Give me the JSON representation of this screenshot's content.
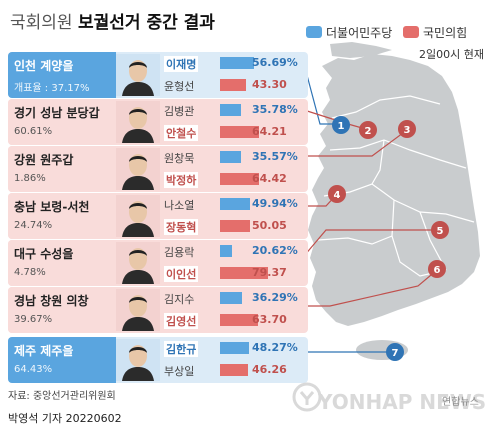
{
  "title": {
    "light": "국회의원",
    "bold": "보궐선거 중간 결과"
  },
  "legend": [
    {
      "label": "더불어민주당",
      "color": "#5aa5df"
    },
    {
      "label": "국민의힘",
      "color": "#e46e6b"
    }
  ],
  "as_of": "2일00시 현재",
  "races": [
    {
      "number": "1",
      "region": "인천 계양을",
      "turnout_label": "개표율 :",
      "turnout": "37.17%",
      "candidates": [
        {
          "name": "이재명",
          "pct": "56.69%",
          "value": 56.69,
          "party": "dem",
          "winner": true
        },
        {
          "name": "윤형선",
          "pct": "43.30",
          "value": 43.3,
          "party": "ppp",
          "winner": false
        }
      ]
    },
    {
      "number": "2",
      "region": "경기 성남 분당갑",
      "turnout": "60.61%",
      "candidates": [
        {
          "name": "김병관",
          "pct": "35.78%",
          "value": 35.78,
          "party": "dem",
          "winner": false
        },
        {
          "name": "안철수",
          "pct": "64.21",
          "value": 64.21,
          "party": "ppp",
          "winner": true
        }
      ]
    },
    {
      "number": "3",
      "region": "강원 원주갑",
      "turnout": "1.86%",
      "candidates": [
        {
          "name": "원창묵",
          "pct": "35.57%",
          "value": 35.57,
          "party": "dem",
          "winner": false
        },
        {
          "name": "박정하",
          "pct": "64.42",
          "value": 64.42,
          "party": "ppp",
          "winner": true
        }
      ]
    },
    {
      "number": "4",
      "region": "충남 보령-서천",
      "turnout": "24.74%",
      "candidates": [
        {
          "name": "나소열",
          "pct": "49.94%",
          "value": 49.94,
          "party": "dem",
          "winner": false
        },
        {
          "name": "장동혁",
          "pct": "50.05",
          "value": 50.05,
          "party": "ppp",
          "winner": true
        }
      ]
    },
    {
      "number": "5",
      "region": "대구 수성을",
      "turnout": "4.78%",
      "candidates": [
        {
          "name": "김용락",
          "pct": "20.62%",
          "value": 20.62,
          "party": "dem",
          "winner": false
        },
        {
          "name": "이인선",
          "pct": "79.37",
          "value": 79.37,
          "party": "ppp",
          "winner": true
        }
      ]
    },
    {
      "number": "6",
      "region": "경남 창원 의창",
      "turnout": "39.67%",
      "candidates": [
        {
          "name": "김지수",
          "pct": "36.29%",
          "value": 36.29,
          "party": "dem",
          "winner": false
        },
        {
          "name": "김영선",
          "pct": "63.70",
          "value": 63.7,
          "party": "ppp",
          "winner": true
        }
      ]
    },
    {
      "number": "7",
      "region": "제주 제주을",
      "turnout": "64.43%",
      "candidates": [
        {
          "name": "김한규",
          "pct": "48.27%",
          "value": 48.27,
          "party": "dem",
          "winner": true
        },
        {
          "name": "부상일",
          "pct": "46.26",
          "value": 46.26,
          "party": "ppp",
          "winner": false
        }
      ]
    }
  ],
  "source": "자료: 중앙선거관리위원회",
  "byline": "박영석 기자  20220602",
  "watermark": "YONHAP NEWS",
  "watermark_small": "연합뉴스"
}
